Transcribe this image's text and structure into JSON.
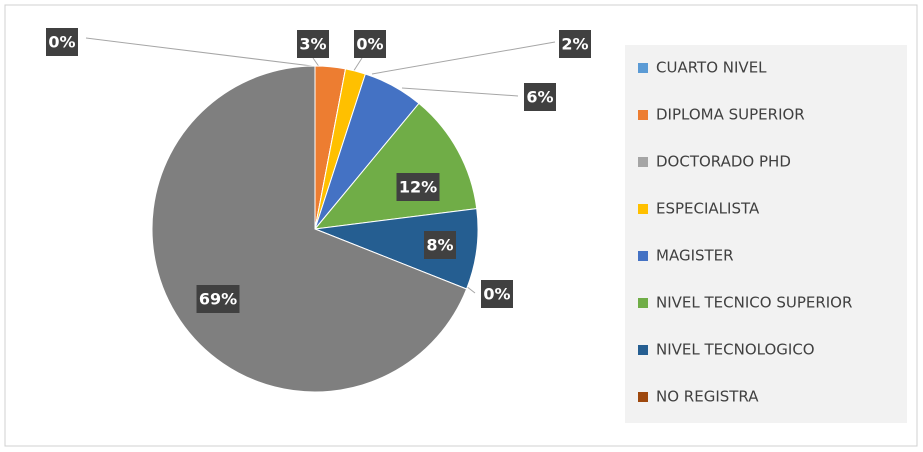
{
  "chart_data": {
    "type": "pie",
    "categories": [
      "CUARTO NIVEL",
      "DIPLOMA SUPERIOR",
      "DOCTORADO PHD",
      "ESPECIALISTA",
      "MAGISTER",
      "NIVEL TECNICO SUPERIOR",
      "NIVEL TECNOLOGICO",
      "NO REGISTRA",
      null
    ],
    "values": [
      0,
      3,
      0,
      2,
      6,
      12,
      8,
      0,
      69
    ],
    "value_labels": [
      "0%",
      "3%",
      "0%",
      "2%",
      "6%",
      "12%",
      "8%",
      "0%",
      "69%"
    ],
    "colors": [
      "#5b9bd5",
      "#ed7d31",
      "#a5a5a5",
      "#ffc000",
      "#4472c4",
      "#70ad47",
      "#255e91",
      "#9e480e",
      "#7f7f7f"
    ],
    "legend": "right"
  }
}
